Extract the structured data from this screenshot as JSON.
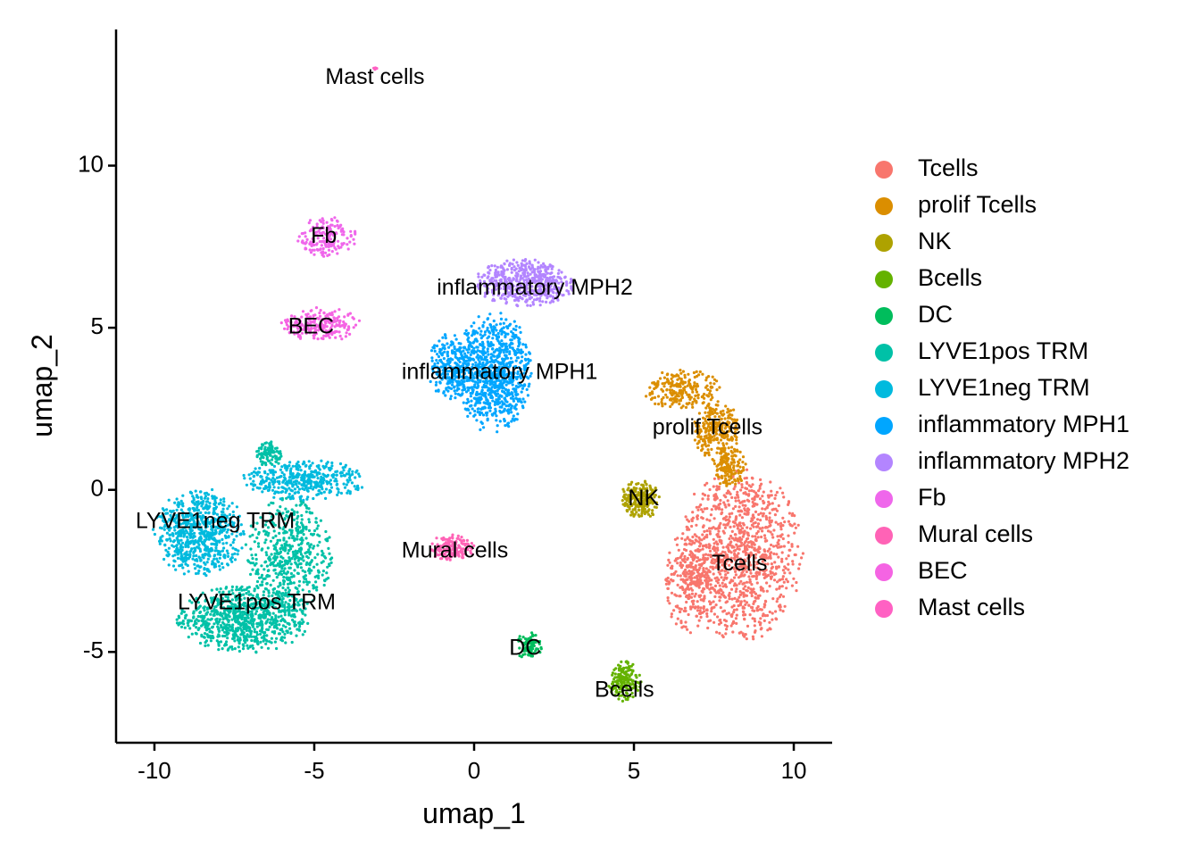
{
  "chart_data": {
    "type": "scatter",
    "title": "",
    "xlabel": "umap_1",
    "ylabel": "umap_2",
    "xlim": [
      -11.2,
      11.2
    ],
    "ylim": [
      -7.8,
      14.2
    ],
    "xticks": [
      {
        "value": -10,
        "label": "-10"
      },
      {
        "value": -5,
        "label": "-5"
      },
      {
        "value": 0,
        "label": "0"
      },
      {
        "value": 5,
        "label": "5"
      },
      {
        "value": 10,
        "label": "10"
      }
    ],
    "yticks": [
      {
        "value": -5,
        "label": "-5"
      },
      {
        "value": 0,
        "label": "0"
      },
      {
        "value": 5,
        "label": "5"
      },
      {
        "value": 10,
        "label": "10"
      }
    ],
    "grid": false,
    "legend_position": "right",
    "series": [
      {
        "name": "Tcells",
        "color": "#F8766D",
        "label_at": [
          8.3,
          -2.3
        ],
        "blobs": [
          {
            "cx": 8.3,
            "cy": -2.0,
            "rx": 1.9,
            "ry": 2.6,
            "n": 1100
          },
          {
            "cx": 6.8,
            "cy": -2.8,
            "rx": 0.8,
            "ry": 1.6,
            "n": 250
          }
        ]
      },
      {
        "name": "prolif Tcells",
        "color": "#DB8E00",
        "label_at": [
          7.3,
          1.9
        ],
        "blobs": [
          {
            "cx": 6.5,
            "cy": 3.1,
            "rx": 1.2,
            "ry": 0.6,
            "n": 220
          },
          {
            "cx": 7.6,
            "cy": 1.8,
            "rx": 0.7,
            "ry": 0.9,
            "n": 260
          },
          {
            "cx": 8.0,
            "cy": 0.7,
            "rx": 0.5,
            "ry": 0.6,
            "n": 140
          }
        ]
      },
      {
        "name": "NK",
        "color": "#AEA200",
        "label_at": [
          5.3,
          -0.3
        ],
        "blobs": [
          {
            "cx": 5.2,
            "cy": -0.3,
            "rx": 0.6,
            "ry": 0.6,
            "n": 220
          }
        ]
      },
      {
        "name": "Bcells",
        "color": "#64B200",
        "label_at": [
          4.7,
          -6.2
        ],
        "blobs": [
          {
            "cx": 4.7,
            "cy": -5.9,
            "rx": 0.5,
            "ry": 0.6,
            "n": 170
          }
        ]
      },
      {
        "name": "DC",
        "color": "#00BD5C",
        "label_at": [
          1.6,
          -4.9
        ],
        "blobs": [
          {
            "cx": 1.7,
            "cy": -4.8,
            "rx": 0.4,
            "ry": 0.4,
            "n": 90
          }
        ]
      },
      {
        "name": "LYVE1pos TRM",
        "color": "#00C1A7",
        "label_at": [
          -6.8,
          -3.5
        ],
        "blobs": [
          {
            "cx": -7.2,
            "cy": -4.0,
            "rx": 2.0,
            "ry": 1.0,
            "n": 800
          },
          {
            "cx": -5.8,
            "cy": -2.0,
            "rx": 1.3,
            "ry": 1.7,
            "n": 500
          },
          {
            "cx": -6.4,
            "cy": 1.1,
            "rx": 0.4,
            "ry": 0.4,
            "n": 90
          }
        ]
      },
      {
        "name": "LYVE1neg TRM",
        "color": "#00BADE",
        "label_at": [
          -8.1,
          -1.0
        ],
        "blobs": [
          {
            "cx": -8.6,
            "cy": -1.3,
            "rx": 1.4,
            "ry": 1.3,
            "n": 700
          },
          {
            "cx": -5.3,
            "cy": 0.3,
            "rx": 1.9,
            "ry": 0.6,
            "n": 400
          }
        ]
      },
      {
        "name": "inflammatory MPH1",
        "color": "#00A6FF",
        "label_at": [
          0.8,
          3.6
        ],
        "blobs": [
          {
            "cx": 0.6,
            "cy": 3.6,
            "rx": 1.2,
            "ry": 1.8,
            "n": 900
          },
          {
            "cx": -0.8,
            "cy": 3.8,
            "rx": 0.6,
            "ry": 1.0,
            "n": 200
          }
        ]
      },
      {
        "name": "inflammatory MPH2",
        "color": "#B385FF",
        "label_at": [
          1.9,
          6.2
        ],
        "blobs": [
          {
            "cx": 1.6,
            "cy": 6.4,
            "rx": 1.5,
            "ry": 0.7,
            "n": 500
          }
        ]
      },
      {
        "name": "Fb",
        "color": "#EF67EB",
        "label_at": [
          -4.7,
          7.8
        ],
        "blobs": [
          {
            "cx": -4.6,
            "cy": 7.8,
            "rx": 0.9,
            "ry": 0.6,
            "n": 170
          }
        ]
      },
      {
        "name": "Mural cells",
        "color": "#FF63B6",
        "label_at": [
          -0.6,
          -1.9
        ],
        "blobs": [
          {
            "cx": -0.7,
            "cy": -1.8,
            "rx": 0.7,
            "ry": 0.4,
            "n": 160
          }
        ]
      },
      {
        "name": "BEC",
        "color": "#F564E3",
        "label_at": [
          -5.1,
          5.0
        ],
        "blobs": [
          {
            "cx": -4.8,
            "cy": 5.1,
            "rx": 1.2,
            "ry": 0.5,
            "n": 220
          }
        ]
      },
      {
        "name": "Mast cells",
        "color": "#FF61C3",
        "label_at": [
          -3.1,
          12.7
        ],
        "blobs": [
          {
            "cx": -3.1,
            "cy": 13.0,
            "rx": 0.06,
            "ry": 0.1,
            "n": 6
          }
        ]
      }
    ]
  }
}
